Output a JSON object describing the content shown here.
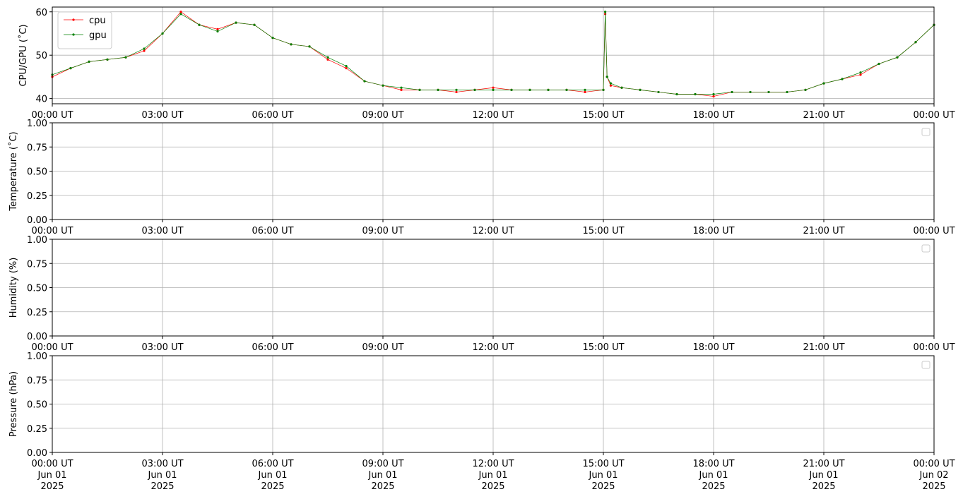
{
  "chart_data": [
    {
      "type": "line",
      "ylabel": "CPU/GPU (˚C)",
      "grid": true,
      "legend": "upper left",
      "xlim": [
        0,
        24
      ],
      "ylim": [
        38.8,
        61.1
      ],
      "yticks": [
        40,
        50,
        60
      ],
      "xticks": [
        {
          "value": 0,
          "label": "00:00 UT"
        },
        {
          "value": 3,
          "label": "03:00 UT"
        },
        {
          "value": 6,
          "label": "06:00 UT"
        },
        {
          "value": 9,
          "label": "09:00 UT"
        },
        {
          "value": 12,
          "label": "12:00 UT"
        },
        {
          "value": 15,
          "label": "15:00 UT"
        },
        {
          "value": 18,
          "label": "18:00 UT"
        },
        {
          "value": 21,
          "label": "21:00 UT"
        },
        {
          "value": 24,
          "label": "00:00 UT"
        }
      ],
      "x": [
        0,
        0.5,
        1,
        1.5,
        2,
        2.5,
        3,
        3.5,
        4,
        4.5,
        5,
        5.5,
        6,
        6.5,
        7,
        7.5,
        8,
        8.5,
        9,
        9.5,
        10,
        10.5,
        11,
        11.5,
        12,
        12.5,
        13,
        13.5,
        14,
        14.5,
        15,
        15.05,
        15.1,
        15.2,
        15.5,
        16,
        16.5,
        17,
        17.5,
        18,
        18.5,
        19,
        19.5,
        20,
        20.5,
        21,
        21.5,
        22,
        22.5,
        23,
        23.5,
        24
      ],
      "series": [
        {
          "name": "cpu",
          "color": "#ff0000",
          "values": [
            45,
            47,
            48.5,
            49,
            49.5,
            51,
            55,
            60,
            57,
            56,
            57.5,
            57,
            54,
            52.5,
            52,
            49,
            47,
            44,
            43,
            42,
            42,
            42,
            41.5,
            42,
            42.5,
            42,
            42,
            42,
            42,
            41.5,
            42,
            59.5,
            45,
            43,
            42.5,
            42,
            41.5,
            41,
            41,
            40.5,
            41.5,
            41.5,
            41.5,
            41.5,
            42,
            43.5,
            44.5,
            45.5,
            48,
            49.5,
            53,
            57
          ]
        },
        {
          "name": "gpu",
          "color": "#008000",
          "values": [
            45.5,
            47,
            48.5,
            49,
            49.5,
            51.5,
            55,
            59.5,
            57,
            55.5,
            57.5,
            57,
            54,
            52.5,
            52,
            49.5,
            47.5,
            44,
            43,
            42.5,
            42,
            42,
            42,
            42,
            42,
            42,
            42,
            42,
            42,
            42,
            42,
            60,
            45,
            43.5,
            42.5,
            42,
            41.5,
            41,
            41,
            41,
            41.5,
            41.5,
            41.5,
            41.5,
            42,
            43.5,
            44.5,
            46,
            48,
            49.5,
            53,
            57
          ]
        }
      ]
    },
    {
      "type": "line",
      "ylabel": "Temperature (˚C)",
      "grid": true,
      "legend": "upper right",
      "xlim": [
        0,
        24
      ],
      "ylim": [
        0,
        1
      ],
      "yticks": [
        {
          "value": 0,
          "label": "0.00"
        },
        {
          "value": 0.25,
          "label": "0.25"
        },
        {
          "value": 0.5,
          "label": "0.50"
        },
        {
          "value": 0.75,
          "label": "0.75"
        },
        {
          "value": 1,
          "label": "1.00"
        }
      ],
      "xticks": [
        {
          "value": 0,
          "label": "00:00 UT"
        },
        {
          "value": 3,
          "label": "03:00 UT"
        },
        {
          "value": 6,
          "label": "06:00 UT"
        },
        {
          "value": 9,
          "label": "09:00 UT"
        },
        {
          "value": 12,
          "label": "12:00 UT"
        },
        {
          "value": 15,
          "label": "15:00 UT"
        },
        {
          "value": 18,
          "label": "18:00 UT"
        },
        {
          "value": 21,
          "label": "21:00 UT"
        },
        {
          "value": 24,
          "label": "00:00 UT"
        }
      ],
      "series": []
    },
    {
      "type": "line",
      "ylabel": "Humidity (%)",
      "grid": true,
      "legend": "upper right",
      "xlim": [
        0,
        24
      ],
      "ylim": [
        0,
        1
      ],
      "yticks": [
        {
          "value": 0,
          "label": "0.00"
        },
        {
          "value": 0.25,
          "label": "0.25"
        },
        {
          "value": 0.5,
          "label": "0.50"
        },
        {
          "value": 0.75,
          "label": "0.75"
        },
        {
          "value": 1,
          "label": "1.00"
        }
      ],
      "xticks": [
        {
          "value": 0,
          "label": "00:00 UT"
        },
        {
          "value": 3,
          "label": "03:00 UT"
        },
        {
          "value": 6,
          "label": "06:00 UT"
        },
        {
          "value": 9,
          "label": "09:00 UT"
        },
        {
          "value": 12,
          "label": "12:00 UT"
        },
        {
          "value": 15,
          "label": "15:00 UT"
        },
        {
          "value": 18,
          "label": "18:00 UT"
        },
        {
          "value": 21,
          "label": "21:00 UT"
        },
        {
          "value": 24,
          "label": "00:00 UT"
        }
      ],
      "series": []
    },
    {
      "type": "line",
      "ylabel": "Pressure (hPa)",
      "grid": true,
      "legend": "upper right",
      "xlim": [
        0,
        24
      ],
      "ylim": [
        0,
        1
      ],
      "yticks": [
        {
          "value": 0,
          "label": "0.00"
        },
        {
          "value": 0.25,
          "label": "0.25"
        },
        {
          "value": 0.5,
          "label": "0.50"
        },
        {
          "value": 0.75,
          "label": "0.75"
        },
        {
          "value": 1,
          "label": "1.00"
        }
      ],
      "xticks": [
        {
          "value": 0,
          "label": "00:00 UT\nJun 01\n2025"
        },
        {
          "value": 3,
          "label": "03:00 UT\nJun 01\n2025"
        },
        {
          "value": 6,
          "label": "06:00 UT\nJun 01\n2025"
        },
        {
          "value": 9,
          "label": "09:00 UT\nJun 01\n2025"
        },
        {
          "value": 12,
          "label": "12:00 UT\nJun 01\n2025"
        },
        {
          "value": 15,
          "label": "15:00 UT\nJun 01\n2025"
        },
        {
          "value": 18,
          "label": "18:00 UT\nJun 01\n2025"
        },
        {
          "value": 21,
          "label": "21:00 UT\nJun 01\n2025"
        },
        {
          "value": 24,
          "label": "00:00 UT\nJun 02\n2025"
        }
      ],
      "series": []
    }
  ]
}
